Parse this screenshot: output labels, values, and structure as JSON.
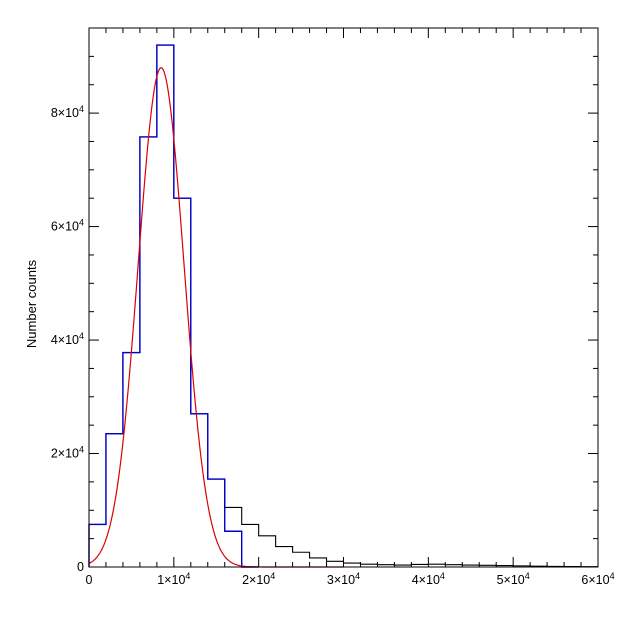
{
  "chart_data": {
    "type": "bar",
    "title": "",
    "xlabel": "",
    "ylabel": "Number counts",
    "xlim": [
      0,
      60000
    ],
    "ylim": [
      0,
      95000
    ],
    "x_ticks": [
      {
        "value": 0,
        "mant": "0",
        "exp": ""
      },
      {
        "value": 10000,
        "mant": "1×10",
        "exp": "4"
      },
      {
        "value": 20000,
        "mant": "2×10",
        "exp": "4"
      },
      {
        "value": 30000,
        "mant": "3×10",
        "exp": "4"
      },
      {
        "value": 40000,
        "mant": "4×10",
        "exp": "4"
      },
      {
        "value": 50000,
        "mant": "5×10",
        "exp": "4"
      },
      {
        "value": 60000,
        "mant": "6×10",
        "exp": "4"
      }
    ],
    "y_ticks": [
      {
        "value": 0,
        "mant": "0",
        "exp": ""
      },
      {
        "value": 20000,
        "mant": "2×10",
        "exp": "4"
      },
      {
        "value": 40000,
        "mant": "4×10",
        "exp": "4"
      },
      {
        "value": 60000,
        "mant": "6×10",
        "exp": "4"
      },
      {
        "value": 80000,
        "mant": "8×10",
        "exp": "4"
      }
    ],
    "bin_width": 2000,
    "series": [
      {
        "color": "#000000",
        "style": "step",
        "bin_start": 0,
        "values": [
          7500,
          23500,
          37800,
          75800,
          92000,
          65000,
          27000,
          15500,
          10500,
          7500,
          5500,
          3600,
          2600,
          1600,
          1000,
          700,
          500,
          400,
          350,
          450,
          500,
          400,
          350,
          300,
          250,
          200,
          150,
          100,
          80,
          60
        ]
      },
      {
        "color": "#0000cc",
        "style": "step",
        "bin_start": 0,
        "values": [
          7500,
          23500,
          37800,
          75800,
          92000,
          65000,
          27000,
          15500,
          6300,
          0
        ]
      },
      {
        "color": "#dd0000",
        "style": "curve",
        "function": "gaussian",
        "amplitude": 88000,
        "center": 8500,
        "sigma": 2700,
        "x_range": [
          0,
          30000
        ]
      }
    ]
  }
}
